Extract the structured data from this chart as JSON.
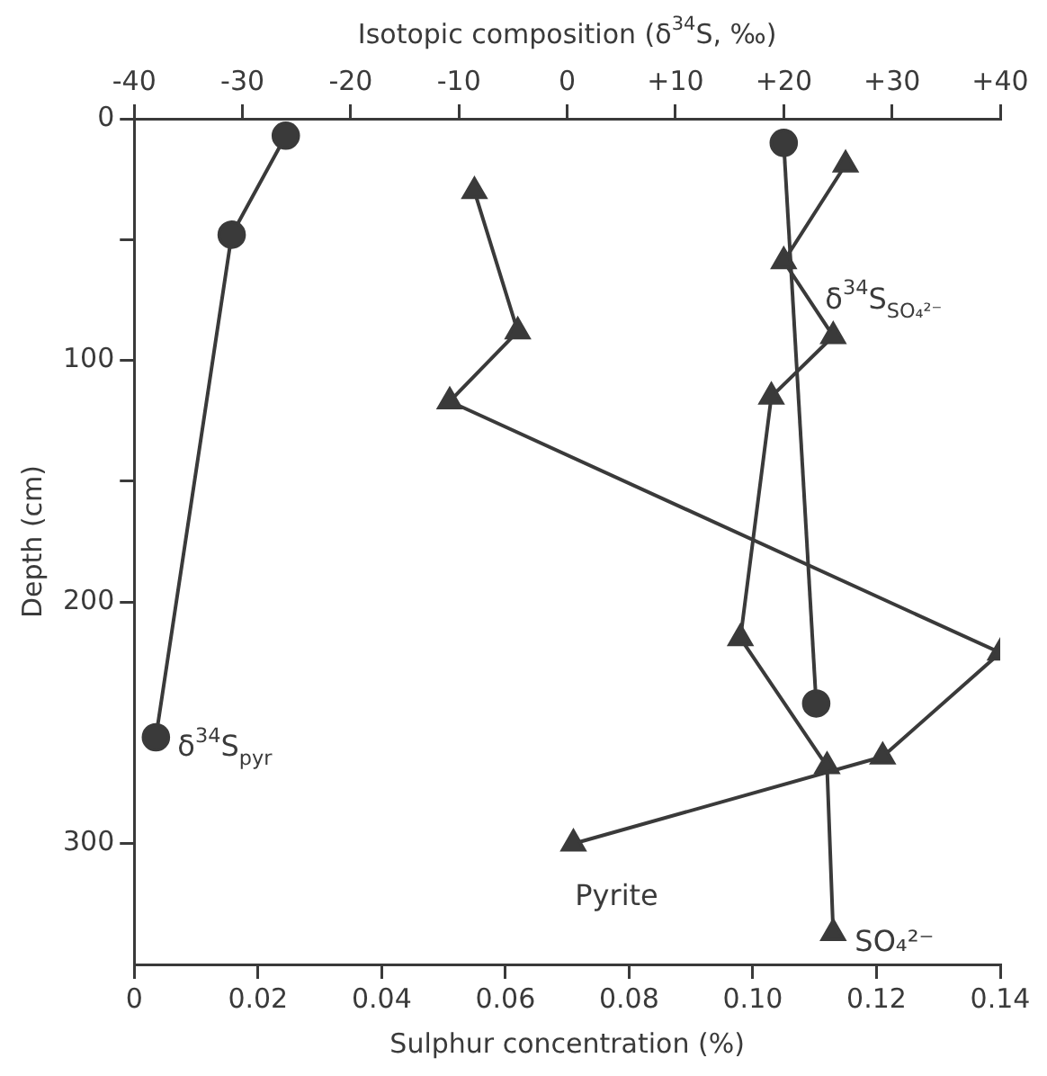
{
  "chart_data": {
    "type": "line",
    "xlabel": "Sulphur concentration (%)",
    "x2label": "Isotopic composition (δ$^{34}$S, ‰)",
    "ylabel": "Depth (cm)",
    "xlim": [
      0,
      0.14
    ],
    "xticks": [
      0,
      0.02,
      0.04,
      0.06,
      0.08,
      {
        "value": 0.1,
        "label": "0.10"
      },
      0.12,
      0.14
    ],
    "x2lim": [
      -40,
      40
    ],
    "x2ticks": [
      -40,
      -30,
      -20,
      -10,
      0,
      {
        "value": 10,
        "label": "+10"
      },
      {
        "value": 20,
        "label": "+20"
      },
      {
        "value": 30,
        "label": "+30"
      },
      {
        "value": 40,
        "label": "+40"
      }
    ],
    "ylim": [
      350,
      0
    ],
    "yticks": [
      0,
      {
        "value": 50,
        "label": null
      },
      100,
      {
        "value": 150,
        "label": null
      },
      200,
      300
    ],
    "grid": false,
    "legend": false,
    "line_style": "solid",
    "series": [
      {
        "name": "δ$^{34}$S$_{pyr}$",
        "color": "#3a3a3a",
        "axis": "x2",
        "marker": "circle",
        "x": [
          -26,
          -31,
          -38
        ],
        "values": [
          7,
          48,
          256
        ]
      },
      {
        "name": "δ$^{34}$S$_{SO₄²⁻}$",
        "color": "#3a3a3a",
        "axis": "x2",
        "marker": "circle",
        "x": [
          20,
          23
        ],
        "values": [
          10,
          242
        ]
      },
      {
        "name": "Pyrite",
        "color": "#3a3a3a",
        "marker": "triangle",
        "x": [
          0.055,
          0.062,
          0.051,
          0.14,
          0.121,
          0.071
        ],
        "values": [
          30,
          88,
          117,
          221,
          264,
          300
        ]
      },
      {
        "name": "SO₄²⁻",
        "color": "#3a3a3a",
        "marker": "triangle",
        "x": [
          0.115,
          0.105,
          0.113,
          0.103,
          0.098,
          0.112,
          0.113
        ],
        "values": [
          19,
          59,
          90,
          115,
          215,
          268,
          337
        ]
      }
    ]
  }
}
